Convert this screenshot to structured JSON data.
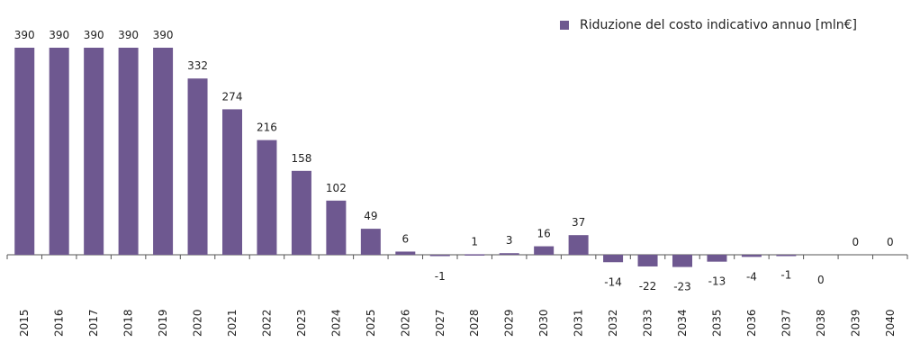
{
  "chart_data": {
    "type": "bar",
    "title": "",
    "xlabel": "",
    "ylabel": "",
    "legend_position": "top-right",
    "categories": [
      "2015",
      "2016",
      "2017",
      "2018",
      "2019",
      "2020",
      "2021",
      "2022",
      "2023",
      "2024",
      "2025",
      "2026",
      "2027",
      "2028",
      "2029",
      "2030",
      "2031",
      "2032",
      "2033",
      "2034",
      "2035",
      "2036",
      "2037",
      "2038",
      "2039",
      "2040"
    ],
    "series": [
      {
        "name": "Riduzione del costo indicativo annuo [mln€]",
        "color": "#6e5890",
        "values": [
          390,
          390,
          390,
          390,
          390,
          332,
          274,
          216,
          158,
          102,
          49,
          6,
          -1,
          1,
          3,
          16,
          37,
          -14,
          -22,
          -23,
          -13,
          -4,
          -1,
          0,
          0,
          0
        ],
        "labels": [
          "390",
          "390",
          "390",
          "390",
          "390",
          "332",
          "274",
          "216",
          "158",
          "102",
          "49",
          "6",
          "-1",
          "1",
          "3",
          "16",
          "37",
          "-14",
          "-22",
          "-23",
          "-13",
          "-4",
          "-1",
          "0",
          "0",
          "0"
        ]
      }
    ]
  }
}
